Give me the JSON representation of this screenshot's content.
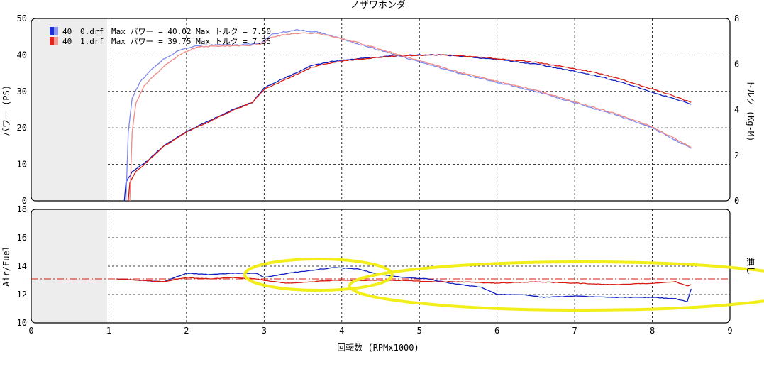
{
  "title": "ノザワホンダ",
  "legend": [
    {
      "number": "40",
      "file": "0.drf",
      "text": "Max パワー = 40.02   Max トルク = 7.50",
      "color": "#1f2fd6"
    },
    {
      "number": "40",
      "file": "1.drf",
      "text": "Max パワー = 39.75   Max トルク = 7.35",
      "color": "#e0261c"
    }
  ],
  "colors": {
    "run0_power": "#1020c0",
    "run0_torque": "#7f88ee",
    "run0_af": "#1020c0",
    "run1_power": "#d81a10",
    "run1_torque": "#f08a84",
    "run1_af": "#d81a10",
    "reference_line": "#d81a10",
    "highlight": "#f2ee1a"
  },
  "chart_data": [
    {
      "type": "line",
      "name": "power-torque",
      "xlabel": "回転数 (RPMx1000)",
      "ylabel": "パワー (PS)",
      "y2label": "トルク (Kg-M)",
      "xlim": [
        0,
        9
      ],
      "ylim": [
        0,
        50
      ],
      "y2lim": [
        0,
        8
      ],
      "xticks": [
        "0",
        "1",
        "2",
        "3",
        "4",
        "5",
        "6",
        "7",
        "8",
        "9"
      ],
      "yticks": [
        "0",
        "10",
        "20",
        "30",
        "40",
        "50"
      ],
      "y2ticks": [
        "0",
        "2",
        "4",
        "6",
        "8"
      ],
      "grid": true,
      "legend_position": "top-left",
      "series": [
        {
          "name": "0.drf パワー",
          "axis": "left",
          "color_key": "run0_power",
          "points": [
            [
              1.2,
              0
            ],
            [
              1.22,
              5
            ],
            [
              1.3,
              8
            ],
            [
              1.5,
              11
            ],
            [
              1.7,
              15
            ],
            [
              2.0,
              19
            ],
            [
              2.3,
              22
            ],
            [
              2.6,
              25
            ],
            [
              2.85,
              27
            ],
            [
              3.0,
              31
            ],
            [
              3.3,
              34
            ],
            [
              3.6,
              37
            ],
            [
              3.9,
              38.3
            ],
            [
              4.2,
              39
            ],
            [
              4.5,
              39.5
            ],
            [
              4.8,
              39.9
            ],
            [
              5.0,
              40
            ],
            [
              5.3,
              40
            ],
            [
              5.6,
              39.5
            ],
            [
              6.0,
              38.8
            ],
            [
              6.5,
              37.5
            ],
            [
              7.0,
              35.5
            ],
            [
              7.3,
              34.2
            ],
            [
              7.6,
              32.5
            ],
            [
              7.9,
              30.5
            ],
            [
              8.2,
              28.5
            ],
            [
              8.5,
              26.5
            ]
          ]
        },
        {
          "name": "1.drf パワー",
          "axis": "left",
          "color_key": "run1_power",
          "points": [
            [
              1.25,
              0
            ],
            [
              1.27,
              5
            ],
            [
              1.35,
              8
            ],
            [
              1.5,
              10.8
            ],
            [
              1.7,
              14.8
            ],
            [
              2.0,
              18.8
            ],
            [
              2.3,
              21.8
            ],
            [
              2.6,
              24.8
            ],
            [
              2.85,
              27
            ],
            [
              3.0,
              30.5
            ],
            [
              3.3,
              33.5
            ],
            [
              3.6,
              36.5
            ],
            [
              3.9,
              38
            ],
            [
              4.2,
              38.8
            ],
            [
              4.5,
              39.4
            ],
            [
              4.8,
              39.8
            ],
            [
              5.0,
              39.9
            ],
            [
              5.3,
              40
            ],
            [
              5.6,
              39.7
            ],
            [
              6.0,
              39
            ],
            [
              6.5,
              38
            ],
            [
              7.0,
              36.2
            ],
            [
              7.3,
              35
            ],
            [
              7.6,
              33.3
            ],
            [
              7.9,
              31.3
            ],
            [
              8.2,
              29.3
            ],
            [
              8.5,
              27
            ]
          ]
        },
        {
          "name": "0.drf トルク",
          "axis": "right",
          "color_key": "run0_torque",
          "points": [
            [
              1.22,
              0
            ],
            [
              1.25,
              3
            ],
            [
              1.3,
              4.5
            ],
            [
              1.4,
              5.2
            ],
            [
              1.5,
              5.6
            ],
            [
              1.7,
              6.2
            ],
            [
              1.9,
              6.6
            ],
            [
              2.1,
              6.8
            ],
            [
              2.4,
              6.85
            ],
            [
              2.7,
              6.85
            ],
            [
              2.95,
              6.9
            ],
            [
              3.1,
              7.3
            ],
            [
              3.4,
              7.5
            ],
            [
              3.7,
              7.4
            ],
            [
              3.9,
              7.2
            ],
            [
              4.2,
              6.9
            ],
            [
              4.5,
              6.6
            ],
            [
              5.0,
              6.1
            ],
            [
              5.5,
              5.6
            ],
            [
              6.0,
              5.2
            ],
            [
              6.5,
              4.8
            ],
            [
              7.0,
              4.3
            ],
            [
              7.5,
              3.8
            ],
            [
              8.0,
              3.2
            ],
            [
              8.5,
              2.3
            ]
          ]
        },
        {
          "name": "1.drf トルク",
          "axis": "right",
          "color_key": "run1_torque",
          "points": [
            [
              1.27,
              0
            ],
            [
              1.3,
              3
            ],
            [
              1.35,
              4.3
            ],
            [
              1.45,
              5.0
            ],
            [
              1.55,
              5.4
            ],
            [
              1.75,
              6.0
            ],
            [
              1.95,
              6.5
            ],
            [
              2.15,
              6.75
            ],
            [
              2.4,
              6.8
            ],
            [
              2.7,
              6.8
            ],
            [
              2.95,
              6.85
            ],
            [
              3.1,
              7.2
            ],
            [
              3.4,
              7.35
            ],
            [
              3.7,
              7.35
            ],
            [
              3.9,
              7.2
            ],
            [
              4.2,
              6.95
            ],
            [
              4.5,
              6.65
            ],
            [
              5.0,
              6.15
            ],
            [
              5.5,
              5.65
            ],
            [
              6.0,
              5.25
            ],
            [
              6.5,
              4.85
            ],
            [
              7.0,
              4.35
            ],
            [
              7.5,
              3.85
            ],
            [
              8.0,
              3.25
            ],
            [
              8.5,
              2.35
            ]
          ]
        }
      ]
    },
    {
      "type": "line",
      "name": "air-fuel",
      "xlabel": "回転数 (RPMx1000)",
      "ylabel": "Air/Fuel",
      "y2label": "無し",
      "xlim": [
        0,
        9
      ],
      "ylim": [
        10,
        18
      ],
      "xticks": [
        "0",
        "1",
        "2",
        "3",
        "4",
        "5",
        "6",
        "7",
        "8",
        "9"
      ],
      "yticks": [
        "10",
        "12",
        "14",
        "16",
        "18"
      ],
      "grid": true,
      "reference_line": {
        "y": 13.1,
        "style": "dash-dot",
        "color_key": "reference_line"
      },
      "series": [
        {
          "name": "0.drf A/F",
          "color_key": "run0_af",
          "points": [
            [
              1.1,
              13.1
            ],
            [
              1.4,
              13.0
            ],
            [
              1.7,
              12.9
            ],
            [
              2.0,
              13.5
            ],
            [
              2.3,
              13.4
            ],
            [
              2.6,
              13.5
            ],
            [
              2.9,
              13.5
            ],
            [
              3.0,
              13.2
            ],
            [
              3.3,
              13.5
            ],
            [
              3.6,
              13.7
            ],
            [
              3.9,
              13.9
            ],
            [
              4.2,
              13.8
            ],
            [
              4.5,
              13.4
            ],
            [
              4.8,
              13.2
            ],
            [
              5.1,
              13.1
            ],
            [
              5.4,
              12.8
            ],
            [
              5.8,
              12.5
            ],
            [
              6.0,
              12.0
            ],
            [
              6.3,
              12.0
            ],
            [
              6.6,
              11.8
            ],
            [
              7.0,
              11.9
            ],
            [
              7.5,
              11.8
            ],
            [
              8.0,
              11.8
            ],
            [
              8.3,
              11.7
            ],
            [
              8.45,
              11.5
            ],
            [
              8.5,
              12.4
            ]
          ]
        },
        {
          "name": "1.drf A/F",
          "color_key": "run1_af",
          "points": [
            [
              1.1,
              13.1
            ],
            [
              1.4,
              13.0
            ],
            [
              1.7,
              12.9
            ],
            [
              2.0,
              13.2
            ],
            [
              2.3,
              13.1
            ],
            [
              2.6,
              13.2
            ],
            [
              2.9,
              13.1
            ],
            [
              3.0,
              13.0
            ],
            [
              3.3,
              12.8
            ],
            [
              3.6,
              12.9
            ],
            [
              3.9,
              13.0
            ],
            [
              4.2,
              13.0
            ],
            [
              4.5,
              13.0
            ],
            [
              4.8,
              13.0
            ],
            [
              5.1,
              12.9
            ],
            [
              5.5,
              12.9
            ],
            [
              6.0,
              12.8
            ],
            [
              6.5,
              12.9
            ],
            [
              7.0,
              12.8
            ],
            [
              7.5,
              12.7
            ],
            [
              8.0,
              12.8
            ],
            [
              8.3,
              12.9
            ],
            [
              8.45,
              12.6
            ],
            [
              8.5,
              12.7
            ]
          ]
        }
      ],
      "highlights": [
        {
          "cx": 3.7,
          "cy": 13.4,
          "rx": 0.95,
          "ry": 1.1
        },
        {
          "cx": 7.1,
          "cy": 12.6,
          "rx": 3.0,
          "ry": 1.7
        }
      ]
    }
  ]
}
